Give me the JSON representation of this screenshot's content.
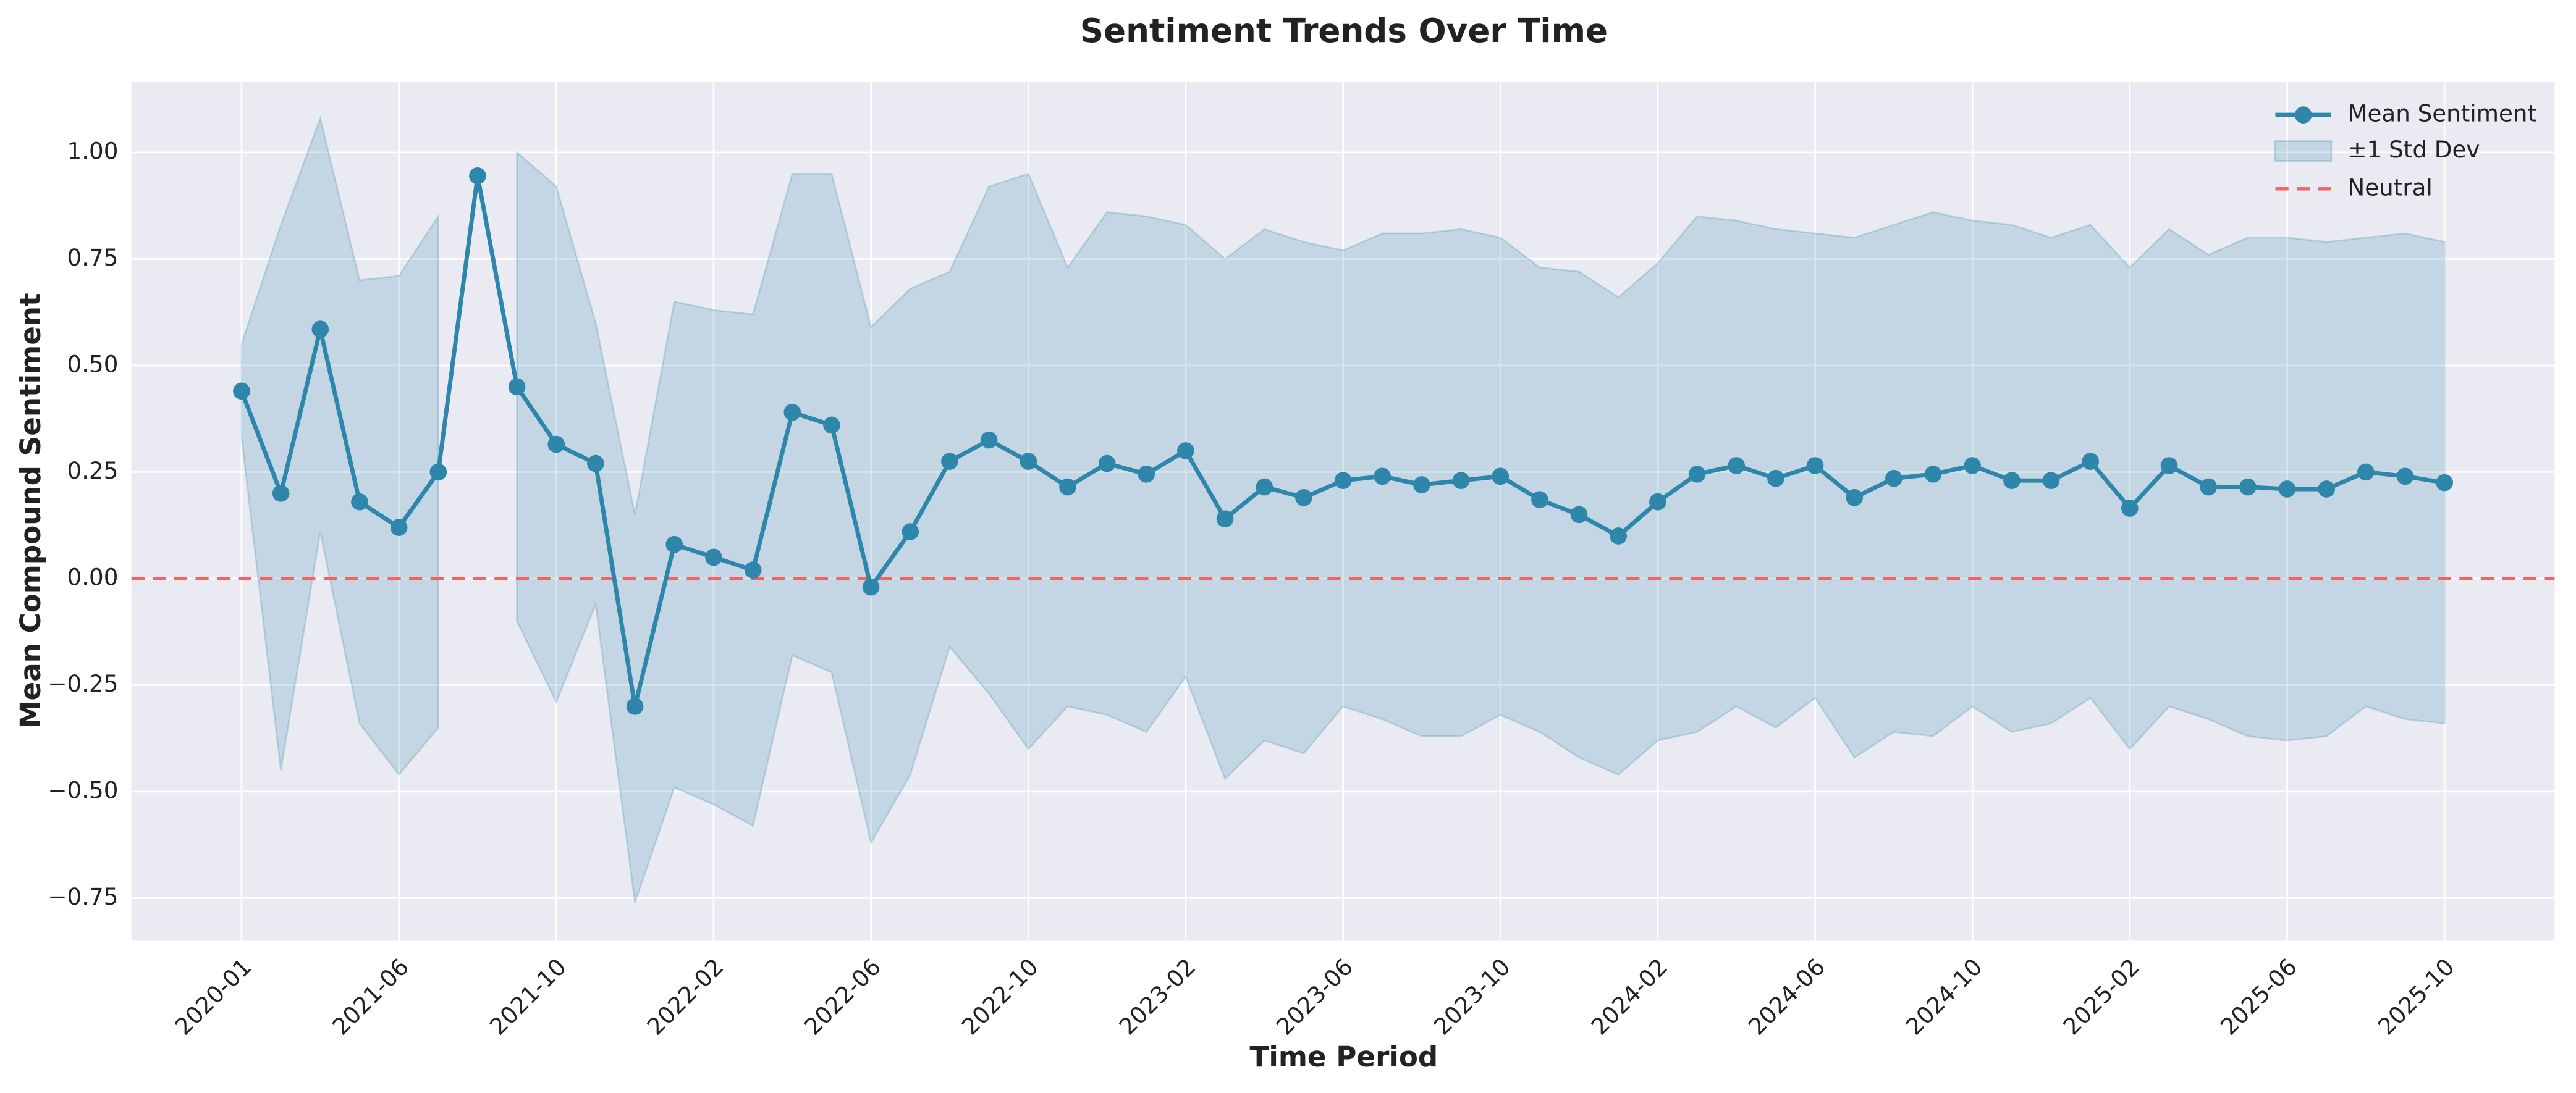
{
  "chart_data": {
    "type": "line",
    "title": "Sentiment Trends Over Time",
    "x_label": "Time Period",
    "y_label": "Mean Compound Sentiment",
    "categories": [
      "2020-01",
      null,
      null,
      null,
      "2021-06",
      null,
      null,
      null,
      "2021-10",
      null,
      null,
      null,
      "2022-02",
      null,
      null,
      null,
      "2022-06",
      null,
      null,
      null,
      "2022-10",
      null,
      null,
      null,
      "2023-02",
      null,
      null,
      null,
      "2023-06",
      null,
      null,
      null,
      "2023-10",
      null,
      null,
      null,
      "2024-02",
      null,
      null,
      null,
      "2024-06",
      null,
      null,
      null,
      "2024-10",
      null,
      null,
      null,
      "2025-02",
      null,
      null,
      null,
      "2025-06",
      null,
      null,
      null,
      "2025-10"
    ],
    "series": [
      {
        "name": "Mean Sentiment",
        "color": "#2e86ab",
        "values": [
          0.44,
          0.2,
          0.585,
          0.18,
          0.12,
          0.25,
          0.945,
          0.45,
          0.315,
          0.27,
          -0.3,
          0.08,
          0.05,
          0.02,
          0.39,
          0.36,
          -0.02,
          0.11,
          0.275,
          0.325,
          0.275,
          0.215,
          0.27,
          0.245,
          0.3,
          0.14,
          0.215,
          0.19,
          0.23,
          0.24,
          0.22,
          0.23,
          0.24,
          0.185,
          0.15,
          0.1,
          0.18,
          0.245,
          0.265,
          0.235,
          0.265,
          0.19,
          0.235,
          0.245,
          0.265,
          0.23,
          0.23,
          0.275,
          0.165,
          0.265,
          0.215,
          0.215,
          0.21,
          0.21,
          0.25,
          0.24,
          0.225
        ]
      },
      {
        "name": "±1 Std Dev",
        "color": "#2e86ab",
        "upper": [
          0.55,
          0.83,
          1.08,
          0.7,
          0.71,
          0.85,
          null,
          1.0,
          0.92,
          0.6,
          0.15,
          0.65,
          0.63,
          0.62,
          0.95,
          0.95,
          0.59,
          0.68,
          0.72,
          0.92,
          0.95,
          0.73,
          0.86,
          0.85,
          0.83,
          0.75,
          0.82,
          0.79,
          0.77,
          0.81,
          0.81,
          0.82,
          0.8,
          0.73,
          0.72,
          0.66,
          0.74,
          0.85,
          0.84,
          0.82,
          0.81,
          0.8,
          0.83,
          0.86,
          0.84,
          0.83,
          0.8,
          0.83,
          0.73,
          0.82,
          0.76,
          0.8,
          0.8,
          0.79,
          0.8,
          0.81,
          0.79
        ],
        "lower": [
          0.33,
          -0.45,
          0.11,
          -0.34,
          -0.46,
          -0.35,
          null,
          -0.1,
          -0.29,
          -0.06,
          -0.76,
          -0.49,
          -0.53,
          -0.58,
          -0.18,
          -0.22,
          -0.62,
          -0.46,
          -0.16,
          -0.27,
          -0.4,
          -0.3,
          -0.32,
          -0.36,
          -0.23,
          -0.47,
          -0.38,
          -0.41,
          -0.3,
          -0.33,
          -0.37,
          -0.37,
          -0.32,
          -0.36,
          -0.42,
          -0.46,
          -0.38,
          -0.36,
          -0.3,
          -0.35,
          -0.28,
          -0.42,
          -0.36,
          -0.37,
          -0.3,
          -0.36,
          -0.34,
          -0.28,
          -0.4,
          -0.3,
          -0.33,
          -0.37,
          -0.38,
          -0.37,
          -0.3,
          -0.33,
          -0.34
        ]
      },
      {
        "name": "Neutral",
        "color": "#f06464",
        "value": 0
      }
    ],
    "ylim": [
      -0.85,
      1.165
    ],
    "yticks": [
      {
        "value": -0.75,
        "label": "−0.75"
      },
      {
        "value": -0.5,
        "label": "−0.50"
      },
      {
        "value": -0.25,
        "label": "−0.25"
      },
      {
        "value": 0,
        "label": "0.00"
      },
      {
        "value": 0.25,
        "label": "0.25"
      },
      {
        "value": 0.5,
        "label": "0.50"
      },
      {
        "value": 0.75,
        "label": "0.75"
      },
      {
        "value": 1.0,
        "label": "1.00"
      }
    ],
    "grid": true,
    "legend": "upper right"
  }
}
